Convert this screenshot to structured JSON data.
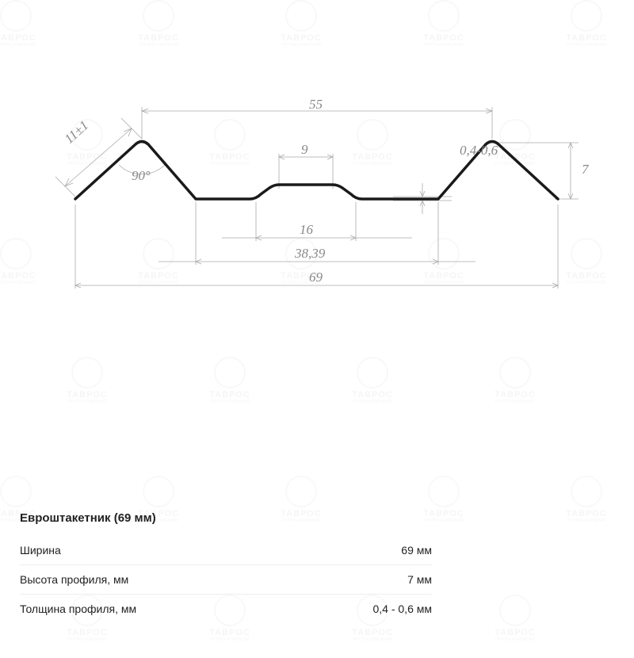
{
  "watermark": {
    "brand": "ТАВРОС",
    "sub": "ГРУППА КОМПАНИЙ"
  },
  "diagram": {
    "profile_stroke": "#1a1a1a",
    "profile_stroke_width": 3.5,
    "dim_color": "#999999",
    "dim_stroke_width": 0.8,
    "label_color": "#888888",
    "label_fontsize": 17,
    "label_fontfamily": "Georgia, serif",
    "label_fontstyle": "italic",
    "background": "#ffffff",
    "dims": {
      "top_span": "55",
      "left_slant": "11±1",
      "angle": "90°",
      "bump_top": "9",
      "bump_span": "16",
      "inner_span": "38,39",
      "full_span": "69",
      "thickness": "0,4-0,6",
      "height": "7"
    }
  },
  "spec": {
    "title": "Евроштакетник (69 мм)",
    "rows": [
      {
        "label": "Ширина",
        "value": "69 мм"
      },
      {
        "label": "Высота профиля, мм",
        "value": "7 мм"
      },
      {
        "label": "Толщина профиля, мм",
        "value": "0,4 - 0,6 мм"
      }
    ]
  }
}
